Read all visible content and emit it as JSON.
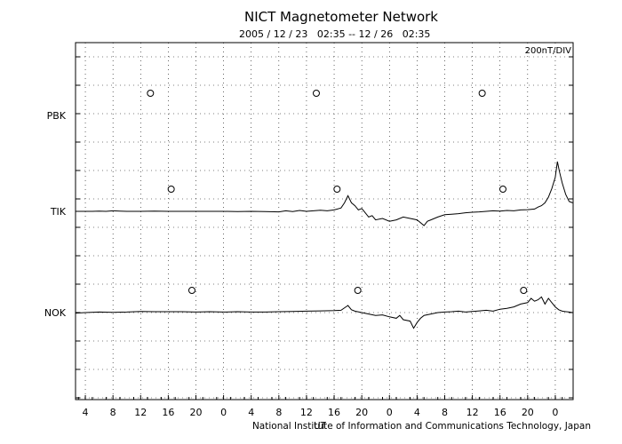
{
  "chart_data": {
    "type": "line",
    "title": "NICT Magnetometer Network",
    "subtitle": "2005 / 12 / 23   02:35 -- 12 / 26   02:35",
    "scale_label": "200nT/DIV",
    "xlabel": "UT",
    "footer": "National Institute of Information and Communications Technology, Japan",
    "x_tick_labels": [
      "4",
      "8",
      "12",
      "16",
      "20",
      "0",
      "4",
      "8",
      "12",
      "16",
      "20",
      "0",
      "4",
      "8",
      "12",
      "16",
      "20",
      "0"
    ],
    "x_range_hours": [
      -1.42,
      70.58
    ],
    "grid": true,
    "stations": [
      {
        "name": "PBK",
        "local_midnight_marker_hours": [
          9.42,
          33.42,
          57.42
        ],
        "data": []
      },
      {
        "name": "TIK",
        "local_midnight_marker_hours": [
          12.42,
          36.42,
          60.42
        ],
        "data": [
          [
            -1.4,
            0
          ],
          [
            0,
            0
          ],
          [
            1,
            0
          ],
          [
            2,
            0.01
          ],
          [
            3,
            0
          ],
          [
            4,
            0.02
          ],
          [
            5,
            0.01
          ],
          [
            6,
            0
          ],
          [
            8,
            0
          ],
          [
            10,
            0.01
          ],
          [
            12,
            0
          ],
          [
            14,
            0
          ],
          [
            16,
            0
          ],
          [
            18,
            0
          ],
          [
            20,
            0
          ],
          [
            22,
            -0.01
          ],
          [
            24,
            0
          ],
          [
            26,
            -0.01
          ],
          [
            28,
            -0.02
          ],
          [
            29,
            0.02
          ],
          [
            30,
            -0.01
          ],
          [
            31,
            0.03
          ],
          [
            32,
            0
          ],
          [
            33,
            0.02
          ],
          [
            34,
            0.04
          ],
          [
            35,
            0.02
          ],
          [
            36,
            0.05
          ],
          [
            37,
            0.12
          ],
          [
            37.5,
            0.3
          ],
          [
            38,
            0.55
          ],
          [
            38.5,
            0.3
          ],
          [
            39,
            0.2
          ],
          [
            39.5,
            0.05
          ],
          [
            40,
            0.1
          ],
          [
            40.5,
            -0.05
          ],
          [
            41,
            -0.2
          ],
          [
            41.5,
            -0.15
          ],
          [
            42,
            -0.3
          ],
          [
            43,
            -0.25
          ],
          [
            44,
            -0.35
          ],
          [
            45,
            -0.3
          ],
          [
            46,
            -0.2
          ],
          [
            47,
            -0.25
          ],
          [
            48,
            -0.3
          ],
          [
            49,
            -0.5
          ],
          [
            49.5,
            -0.35
          ],
          [
            50,
            -0.3
          ],
          [
            51,
            -0.2
          ],
          [
            52,
            -0.12
          ],
          [
            53,
            -0.1
          ],
          [
            54,
            -0.08
          ],
          [
            55,
            -0.05
          ],
          [
            56,
            -0.03
          ],
          [
            57,
            -0.02
          ],
          [
            58,
            0
          ],
          [
            59,
            0.02
          ],
          [
            60,
            0.01
          ],
          [
            61,
            0.03
          ],
          [
            62,
            0.02
          ],
          [
            63,
            0.05
          ],
          [
            64,
            0.06
          ],
          [
            65,
            0.08
          ],
          [
            65.5,
            0.15
          ],
          [
            66,
            0.2
          ],
          [
            66.5,
            0.3
          ],
          [
            67,
            0.5
          ],
          [
            67.5,
            0.8
          ],
          [
            68,
            1.2
          ],
          [
            68.3,
            1.75
          ],
          [
            68.6,
            1.4
          ],
          [
            69,
            1.0
          ],
          [
            69.5,
            0.6
          ],
          [
            70,
            0.35
          ],
          [
            70.5,
            0.3
          ]
        ]
      },
      {
        "name": "NOK",
        "local_midnight_marker_hours": [
          15.42,
          39.42,
          63.42
        ],
        "data": [
          [
            -1.4,
            -0.02
          ],
          [
            0,
            0
          ],
          [
            2,
            0.02
          ],
          [
            4,
            0.01
          ],
          [
            6,
            0.02
          ],
          [
            8,
            0.04
          ],
          [
            10,
            0.03
          ],
          [
            12,
            0.03
          ],
          [
            14,
            0.03
          ],
          [
            16,
            0.02
          ],
          [
            18,
            0.03
          ],
          [
            20,
            0.02
          ],
          [
            22,
            0.03
          ],
          [
            24,
            0.02
          ],
          [
            26,
            0.02
          ],
          [
            28,
            0.03
          ],
          [
            30,
            0.04
          ],
          [
            32,
            0.05
          ],
          [
            34,
            0.06
          ],
          [
            36,
            0.07
          ],
          [
            37,
            0.08
          ],
          [
            38,
            0.25
          ],
          [
            38.5,
            0.1
          ],
          [
            39,
            0.05
          ],
          [
            40,
            0
          ],
          [
            41,
            -0.05
          ],
          [
            42,
            -0.1
          ],
          [
            43,
            -0.08
          ],
          [
            44,
            -0.15
          ],
          [
            45,
            -0.2
          ],
          [
            45.5,
            -0.1
          ],
          [
            46,
            -0.25
          ],
          [
            47,
            -0.3
          ],
          [
            47.5,
            -0.55
          ],
          [
            48,
            -0.35
          ],
          [
            48.5,
            -0.2
          ],
          [
            49,
            -0.1
          ],
          [
            50,
            -0.05
          ],
          [
            51,
            0
          ],
          [
            52,
            0.02
          ],
          [
            53,
            0.03
          ],
          [
            54,
            0.05
          ],
          [
            55,
            0.02
          ],
          [
            56,
            0.04
          ],
          [
            57,
            0.06
          ],
          [
            58,
            0.08
          ],
          [
            59,
            0.05
          ],
          [
            60,
            0.12
          ],
          [
            61,
            0.15
          ],
          [
            62,
            0.2
          ],
          [
            63,
            0.3
          ],
          [
            64,
            0.35
          ],
          [
            64.5,
            0.5
          ],
          [
            65,
            0.4
          ],
          [
            65.5,
            0.45
          ],
          [
            66,
            0.55
          ],
          [
            66.5,
            0.3
          ],
          [
            67,
            0.5
          ],
          [
            67.5,
            0.35
          ],
          [
            68,
            0.2
          ],
          [
            68.5,
            0.1
          ],
          [
            69,
            0.05
          ],
          [
            70,
            0.02
          ],
          [
            70.5,
            0
          ]
        ]
      }
    ]
  }
}
